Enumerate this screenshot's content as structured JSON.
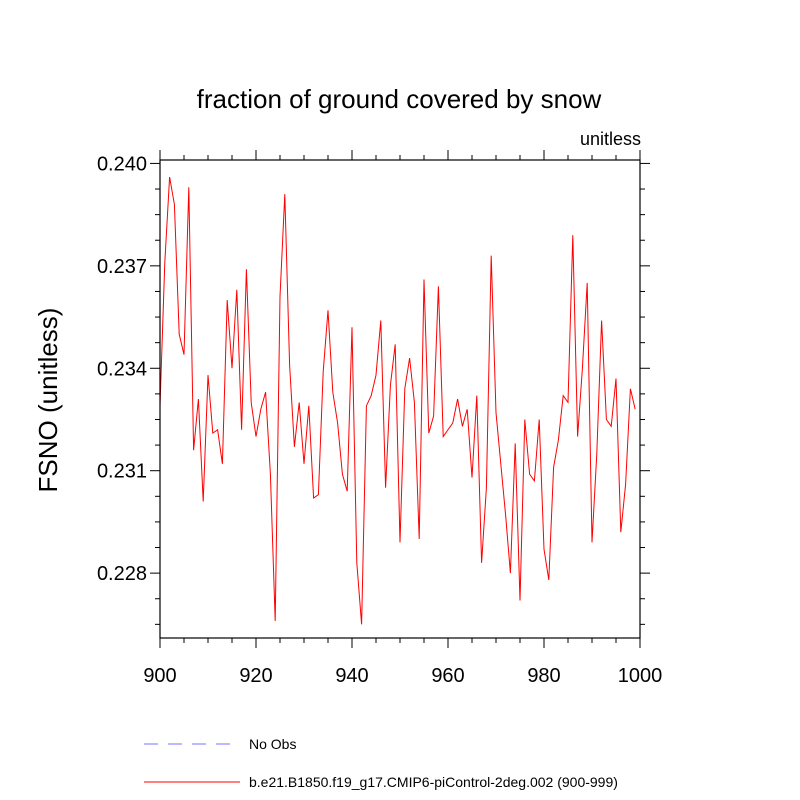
{
  "chart_data": {
    "type": "line",
    "title": "fraction of ground covered by snow",
    "units_label": "unitless",
    "ylabel": "FSNO  (unitless)",
    "xlabel": "",
    "xlim": [
      900,
      1000
    ],
    "ylim": [
      0.2261,
      0.2401
    ],
    "x_ticks": [
      900,
      920,
      940,
      960,
      980,
      1000
    ],
    "x_tick_labels": [
      "900",
      "920",
      "940",
      "960",
      "980",
      "1000"
    ],
    "y_ticks": [
      0.228,
      0.231,
      0.234,
      0.237,
      0.24
    ],
    "y_tick_labels": [
      "0.228",
      "0.231",
      "0.234",
      "0.237",
      "0.240"
    ],
    "series": [
      {
        "name": "b.e21.B1850.f19_g17.CMIP6-piControl-2deg.002 (900-999)",
        "color": "#ff0000",
        "x_start": 900,
        "values": [
          0.2329,
          0.2371,
          0.2396,
          0.2388,
          0.235,
          0.2344,
          0.2393,
          0.2316,
          0.2331,
          0.2301,
          0.2338,
          0.2321,
          0.2322,
          0.2312,
          0.236,
          0.234,
          0.2363,
          0.2322,
          0.2369,
          0.233,
          0.232,
          0.2328,
          0.2333,
          0.2309,
          0.2266,
          0.2361,
          0.2391,
          0.2341,
          0.2317,
          0.233,
          0.2312,
          0.2329,
          0.2302,
          0.2303,
          0.2339,
          0.2357,
          0.2333,
          0.2324,
          0.2309,
          0.2304,
          0.2352,
          0.2283,
          0.2265,
          0.2329,
          0.2332,
          0.2338,
          0.2354,
          0.2305,
          0.2335,
          0.2347,
          0.2289,
          0.2334,
          0.2343,
          0.233,
          0.229,
          0.2366,
          0.2321,
          0.2326,
          0.2364,
          0.232,
          0.2322,
          0.2324,
          0.2331,
          0.2323,
          0.2328,
          0.2308,
          0.2332,
          0.2283,
          0.2305,
          0.2373,
          0.2327,
          0.2312,
          0.2297,
          0.228,
          0.2318,
          0.2272,
          0.2325,
          0.2309,
          0.2307,
          0.2325,
          0.2287,
          0.2278,
          0.2311,
          0.2319,
          0.2332,
          0.233,
          0.2379,
          0.232,
          0.234,
          0.2365,
          0.2289,
          0.2315,
          0.2354,
          0.2325,
          0.2323,
          0.2337,
          0.2292,
          0.2306,
          0.2334,
          0.2328
        ]
      }
    ],
    "legend": [
      {
        "label": "No Obs",
        "color": "#7777ff",
        "style": "dashed"
      },
      {
        "label": "b.e21.B1850.f19_g17.CMIP6-piControl-2deg.002 (900-999)",
        "color": "#ff0000",
        "style": "solid"
      }
    ]
  }
}
